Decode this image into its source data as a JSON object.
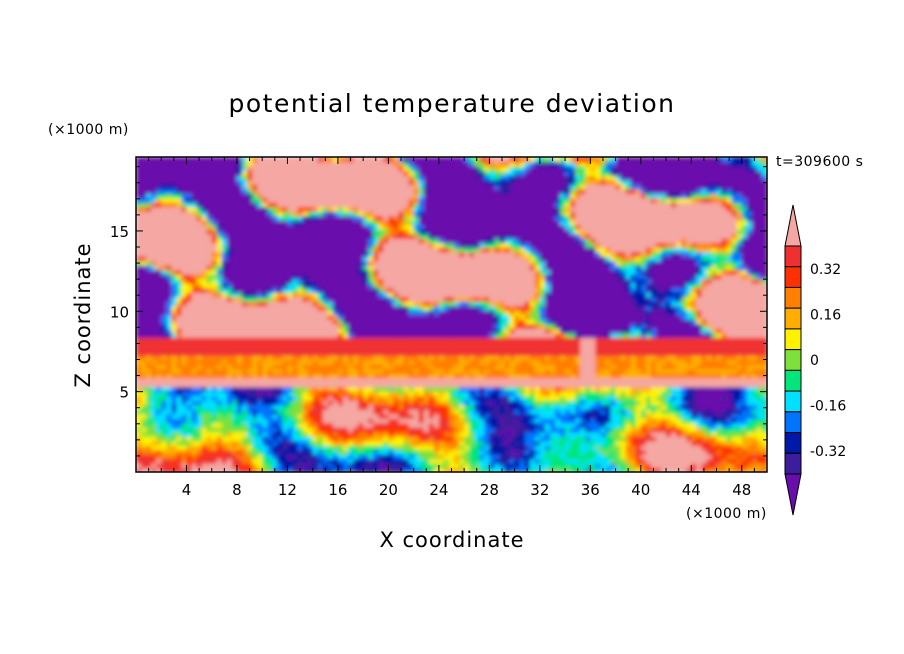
{
  "chart_data": {
    "type": "heatmap",
    "title": "potential temperature deviation",
    "xlabel": "X coordinate",
    "ylabel": "Z coordinate",
    "x_unit": "(×1000 m)",
    "y_unit": "(×1000 m)",
    "time_label": "t=309600 s",
    "xlim": [
      0,
      50
    ],
    "ylim": [
      0,
      19.6
    ],
    "x_ticks": [
      4,
      8,
      12,
      16,
      20,
      24,
      28,
      32,
      36,
      40,
      44,
      48
    ],
    "y_ticks": [
      5,
      10,
      15
    ],
    "colorbar": {
      "colors": [
        "#6a0dad",
        "#3b1d9e",
        "#0019a8",
        "#0073ff",
        "#00e1ff",
        "#00e67a",
        "#7ee03a",
        "#fff200",
        "#ffae00",
        "#ff7f00",
        "#ff3000",
        "#f03030",
        "#f4a7a3"
      ],
      "tick_labels": [
        "0.32",
        "0.16",
        "0",
        "-0.16",
        "-0.32"
      ],
      "tick_values": [
        0.32,
        0.16,
        0,
        -0.16,
        -0.32
      ],
      "extend": "both"
    },
    "layers": [
      {
        "z_range": [
          0,
          5.2
        ],
        "description_color": "mixed"
      },
      {
        "z_range": [
          5.2,
          8.3
        ],
        "band_color": "#ffae00"
      },
      {
        "z_range": [
          8.3,
          19.6
        ],
        "description_color": "mixed"
      }
    ]
  }
}
